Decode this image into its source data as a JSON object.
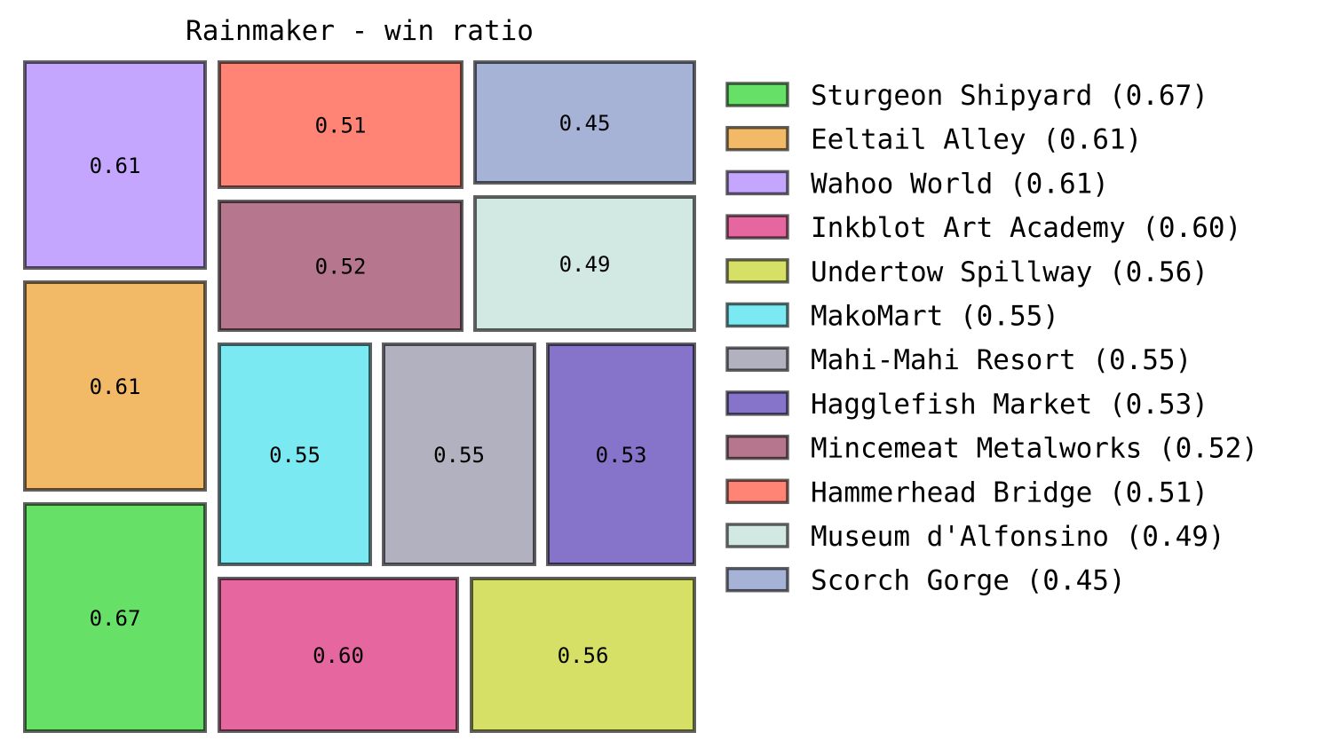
{
  "chart_data": {
    "type": "treemap",
    "title": "Rainmaker - win ratio",
    "edge_color": "#000000",
    "items": [
      {
        "name": "Sturgeon Shipyard",
        "value": 0.67,
        "label": "0.67",
        "legend": "Sturgeon Shipyard (0.67)",
        "color": "#00cc00"
      },
      {
        "name": "Eeltail Alley",
        "value": 0.61,
        "label": "0.61",
        "legend": "Eeltail Alley (0.61)",
        "color": "#ea8a00"
      },
      {
        "name": "Wahoo World",
        "value": 0.61,
        "label": "0.61",
        "legend": "Wahoo World (0.61)",
        "color": "#9e6bff"
      },
      {
        "name": "Inkblot Art Academy",
        "value": 0.6,
        "label": "0.60",
        "legend": "Inkblot Art Academy (0.60)",
        "color": "#d5005f"
      },
      {
        "name": "Undertow Spillway",
        "value": 0.56,
        "label": "0.56",
        "legend": "Undertow Spillway (0.56)",
        "color": "#bdcb00"
      },
      {
        "name": "MakoMart",
        "value": 0.55,
        "label": "0.55",
        "legend": "MakoMart (0.55)",
        "color": "#22dbea"
      },
      {
        "name": "Mahi-Mahi Resort",
        "value": 0.55,
        "label": "0.55",
        "legend": "Mahi-Mahi Resort (0.55)",
        "color": "#7f7d95"
      },
      {
        "name": "Hagglefish Market",
        "value": 0.53,
        "label": "0.53",
        "legend": "Hagglefish Market (0.53)",
        "color": "#3517a6"
      },
      {
        "name": "Mincemeat Metalworks",
        "value": 0.52,
        "label": "0.52",
        "legend": "Mincemeat Metalworks (0.52)",
        "color": "#851a43"
      },
      {
        "name": "Hammerhead Bridge",
        "value": 0.51,
        "label": "0.51",
        "legend": "Hammerhead Bridge (0.51)",
        "color": "#ff3219"
      },
      {
        "name": "Museum d'Alfonsino",
        "value": 0.49,
        "label": "0.49",
        "legend": "Museum d'Alfonsino (0.49)",
        "color": "#b2dbcf"
      },
      {
        "name": "Scorch Gorge",
        "value": 0.45,
        "label": "0.45",
        "legend": "Scorch Gorge (0.45)",
        "color": "#6b81bd"
      }
    ]
  }
}
